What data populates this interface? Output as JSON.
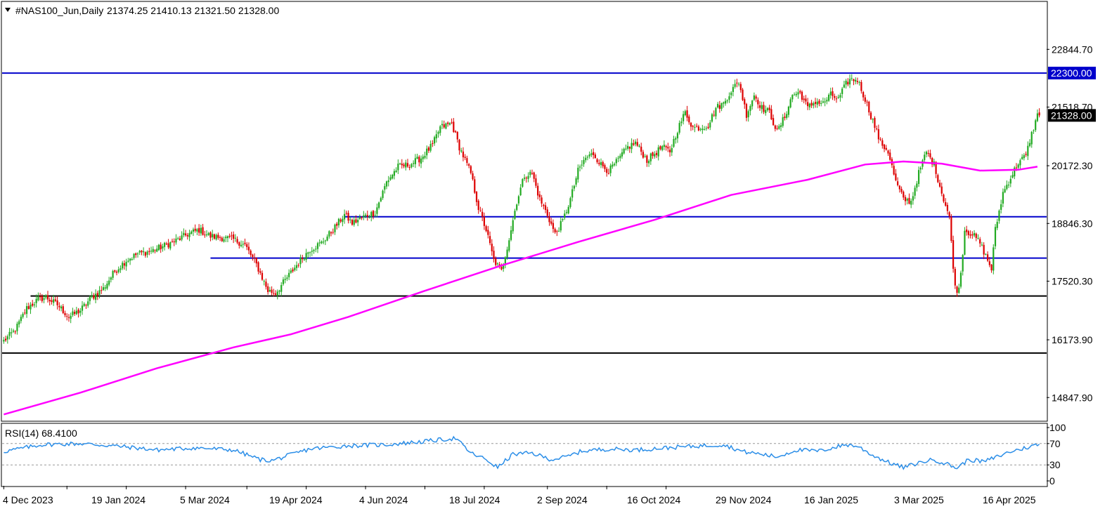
{
  "header": {
    "symbol_label": "#NAS100_Jun,Daily",
    "ohlc": "21374.25 21410.13 21321.50 21328.00",
    "menu_icon": "triangle-down-icon"
  },
  "chart_data": [
    {
      "type": "candlestick",
      "title": "#NAS100_Jun,Daily",
      "x_tick_labels": [
        "4 Dec 2023",
        "19 Jan 2024",
        "5 Mar 2024",
        "19 Apr 2024",
        "4 Jun 2024",
        "18 Jul 2024",
        "2 Sep 2024",
        "16 Oct 2024",
        "29 Nov 2024",
        "16 Jan 2025",
        "3 Mar 2025",
        "16 Apr 2025"
      ],
      "y_tick_labels": [
        "22844.70",
        "21518.70",
        "20172.30",
        "18846.30",
        "17520.30",
        "16173.90",
        "14847.90"
      ],
      "ylim": [
        14320,
        23930
      ],
      "last_price": "21328.00",
      "level_tag": "22300.00",
      "close_path": [
        [
          0,
          16150
        ],
        [
          6,
          16400
        ],
        [
          12,
          16900
        ],
        [
          18,
          17100
        ],
        [
          22,
          17150
        ],
        [
          28,
          16980
        ],
        [
          34,
          16700
        ],
        [
          40,
          16850
        ],
        [
          46,
          17150
        ],
        [
          52,
          17350
        ],
        [
          58,
          17750
        ],
        [
          64,
          18000
        ],
        [
          70,
          18150
        ],
        [
          76,
          18200
        ],
        [
          82,
          18300
        ],
        [
          90,
          18450
        ],
        [
          96,
          18600
        ],
        [
          102,
          18700
        ],
        [
          108,
          18550
        ],
        [
          114,
          18520
        ],
        [
          120,
          18480
        ],
        [
          126,
          18350
        ],
        [
          132,
          17900
        ],
        [
          138,
          17300
        ],
        [
          142,
          17250
        ],
        [
          148,
          17600
        ],
        [
          154,
          17950
        ],
        [
          160,
          18250
        ],
        [
          166,
          18400
        ],
        [
          172,
          18700
        ],
        [
          178,
          19050
        ],
        [
          182,
          18850
        ],
        [
          188,
          19000
        ],
        [
          194,
          19100
        ],
        [
          200,
          19800
        ],
        [
          206,
          20150
        ],
        [
          212,
          20200
        ],
        [
          218,
          20350
        ],
        [
          224,
          20650
        ],
        [
          228,
          21050
        ],
        [
          234,
          21150
        ],
        [
          238,
          20600
        ],
        [
          244,
          20000
        ],
        [
          248,
          19200
        ],
        [
          252,
          18700
        ],
        [
          256,
          18000
        ],
        [
          260,
          17750
        ],
        [
          264,
          18500
        ],
        [
          268,
          19350
        ],
        [
          272,
          19950
        ],
        [
          276,
          20000
        ],
        [
          280,
          19400
        ],
        [
          284,
          19050
        ],
        [
          288,
          18600
        ],
        [
          292,
          18900
        ],
        [
          296,
          19400
        ],
        [
          300,
          20050
        ],
        [
          304,
          20350
        ],
        [
          308,
          20450
        ],
        [
          312,
          20200
        ],
        [
          316,
          20050
        ],
        [
          320,
          20250
        ],
        [
          326,
          20600
        ],
        [
          330,
          20700
        ],
        [
          336,
          20300
        ],
        [
          340,
          20450
        ],
        [
          344,
          20600
        ],
        [
          348,
          20500
        ],
        [
          352,
          21000
        ],
        [
          356,
          21400
        ],
        [
          360,
          21050
        ],
        [
          364,
          21050
        ],
        [
          368,
          21100
        ],
        [
          372,
          21500
        ],
        [
          376,
          21600
        ],
        [
          380,
          21900
        ],
        [
          384,
          22100
        ],
        [
          388,
          21350
        ],
        [
          392,
          21800
        ],
        [
          396,
          21500
        ],
        [
          400,
          21400
        ],
        [
          404,
          20950
        ],
        [
          408,
          21300
        ],
        [
          412,
          21800
        ],
        [
          416,
          21850
        ],
        [
          420,
          21500
        ],
        [
          424,
          21650
        ],
        [
          428,
          21600
        ],
        [
          432,
          21800
        ],
        [
          436,
          21700
        ],
        [
          440,
          22050
        ],
        [
          442,
          22150
        ],
        [
          446,
          22150
        ],
        [
          450,
          21700
        ],
        [
          454,
          21200
        ],
        [
          458,
          20700
        ],
        [
          462,
          20500
        ],
        [
          466,
          19800
        ],
        [
          470,
          19400
        ],
        [
          474,
          19350
        ],
        [
          478,
          20000
        ],
        [
          482,
          20500
        ],
        [
          486,
          20200
        ],
        [
          490,
          19550
        ],
        [
          494,
          19000
        ],
        [
          496,
          17800
        ],
        [
          498,
          17200
        ],
        [
          500,
          17700
        ],
        [
          502,
          18700
        ],
        [
          506,
          18600
        ],
        [
          510,
          18400
        ],
        [
          514,
          18000
        ],
        [
          516,
          17800
        ],
        [
          518,
          18700
        ],
        [
          522,
          19550
        ],
        [
          526,
          19900
        ],
        [
          530,
          20250
        ],
        [
          534,
          20400
        ],
        [
          536,
          20750
        ],
        [
          538,
          21050
        ],
        [
          540,
          21328
        ]
      ],
      "horizontal_levels": [
        {
          "price": 22300,
          "color": "#0000cc",
          "name": "resistance"
        },
        {
          "price": 19000,
          "color": "#0000cc",
          "name": "support-upper"
        },
        {
          "price": 18050,
          "color": "#0000cc",
          "name": "support-lower"
        },
        {
          "price": 17180,
          "color": "#000000",
          "name": "black-level-upper"
        },
        {
          "price": 15870,
          "color": "#000000",
          "name": "black-level-lower"
        }
      ],
      "moving_average": {
        "color": "#ff00ff",
        "points": [
          [
            0,
            14460
          ],
          [
            40,
            14960
          ],
          [
            80,
            15520
          ],
          [
            120,
            16000
          ],
          [
            150,
            16300
          ],
          [
            180,
            16700
          ],
          [
            220,
            17300
          ],
          [
            260,
            17880
          ],
          [
            300,
            18420
          ],
          [
            340,
            18930
          ],
          [
            380,
            19500
          ],
          [
            420,
            19850
          ],
          [
            450,
            20200
          ],
          [
            470,
            20270
          ],
          [
            490,
            20220
          ],
          [
            510,
            20060
          ],
          [
            530,
            20080
          ],
          [
            540,
            20150
          ]
        ]
      },
      "colors": {
        "up": "#22aa22",
        "down": "#dd0000"
      }
    },
    {
      "type": "line",
      "title": "RSI(14) 68.4100",
      "label": "RSI(14)",
      "value": "68.4100",
      "y_tick_labels": [
        "100",
        "70",
        "30",
        "0"
      ],
      "ylim": [
        0,
        100
      ],
      "levels": [
        70,
        30
      ],
      "color": "#2b8ee8",
      "path": [
        [
          0,
          55
        ],
        [
          20,
          68
        ],
        [
          40,
          70
        ],
        [
          60,
          65
        ],
        [
          80,
          58
        ],
        [
          100,
          62
        ],
        [
          120,
          58
        ],
        [
          134,
          40
        ],
        [
          140,
          38
        ],
        [
          160,
          60
        ],
        [
          180,
          66
        ],
        [
          200,
          68
        ],
        [
          220,
          74
        ],
        [
          236,
          80
        ],
        [
          244,
          52
        ],
        [
          252,
          40
        ],
        [
          258,
          25
        ],
        [
          266,
          50
        ],
        [
          276,
          52
        ],
        [
          286,
          40
        ],
        [
          294,
          45
        ],
        [
          302,
          56
        ],
        [
          316,
          60
        ],
        [
          330,
          58
        ],
        [
          346,
          62
        ],
        [
          360,
          65
        ],
        [
          376,
          68
        ],
        [
          386,
          55
        ],
        [
          396,
          50
        ],
        [
          404,
          45
        ],
        [
          414,
          58
        ],
        [
          426,
          56
        ],
        [
          440,
          68
        ],
        [
          446,
          65
        ],
        [
          454,
          48
        ],
        [
          462,
          35
        ],
        [
          470,
          25
        ],
        [
          480,
          36
        ],
        [
          486,
          40
        ],
        [
          494,
          30
        ],
        [
          498,
          24
        ],
        [
          504,
          40
        ],
        [
          512,
          36
        ],
        [
          518,
          44
        ],
        [
          526,
          55
        ],
        [
          534,
          62
        ],
        [
          540,
          68
        ]
      ]
    }
  ]
}
